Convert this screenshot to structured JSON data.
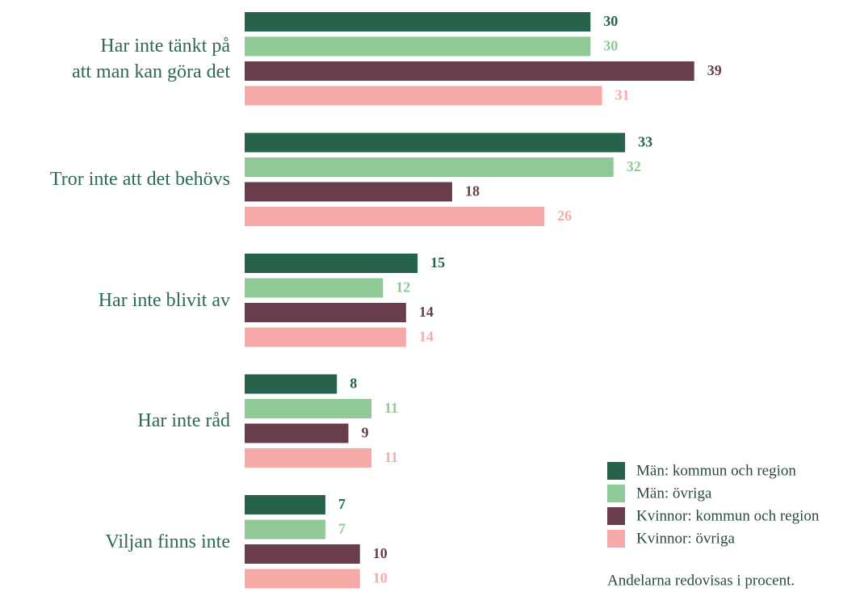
{
  "chart_data": {
    "type": "bar",
    "orientation": "horizontal",
    "categories": [
      "Har inte tänkt på\natt man kan göra det",
      "Tror inte att det behövs",
      "Har inte blivit av",
      "Har inte råd",
      "Viljan finns inte"
    ],
    "series": [
      {
        "name": "Män: kommun och region",
        "color": "#26634a",
        "values": [
          30,
          33,
          15,
          8,
          7
        ]
      },
      {
        "name": "Män: övriga",
        "color": "#8fca96",
        "values": [
          30,
          32,
          12,
          11,
          7
        ]
      },
      {
        "name": "Kvinnor: kommun och region",
        "color": "#6a3d4e",
        "values": [
          39,
          18,
          14,
          9,
          10
        ]
      },
      {
        "name": "Kvinnor: övriga",
        "color": "#f7a9a8",
        "values": [
          31,
          26,
          14,
          11,
          10
        ]
      }
    ],
    "xlim": [
      0,
      40
    ],
    "legend": "bottom-right",
    "note": "Andelarna redovisas i procent."
  }
}
